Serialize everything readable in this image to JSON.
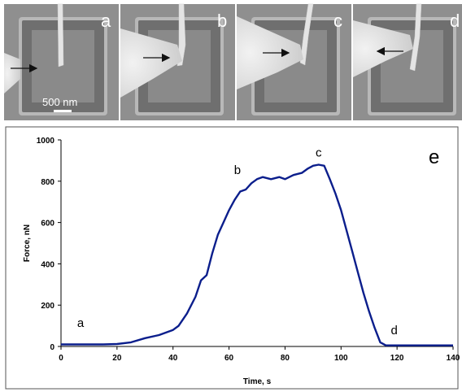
{
  "sem_panels": [
    {
      "label": "a",
      "arrow": "right"
    },
    {
      "label": "b",
      "arrow": "right"
    },
    {
      "label": "c",
      "arrow": "right"
    },
    {
      "label": "d",
      "arrow": "left"
    }
  ],
  "scale_bar_label": "500 nm",
  "chart_data": {
    "type": "line",
    "panel_label": "e",
    "xlabel": "Time, s",
    "ylabel": "Force, nN",
    "xlim": [
      0,
      140
    ],
    "ylim": [
      0,
      1000
    ],
    "xticks": [
      0,
      20,
      40,
      60,
      80,
      100,
      120,
      140
    ],
    "yticks": [
      0,
      200,
      400,
      600,
      800,
      1000
    ],
    "grid": false,
    "series": [
      {
        "color": "#0b1e8c",
        "x": [
          0,
          5,
          10,
          15,
          20,
          25,
          30,
          35,
          38,
          40,
          42,
          45,
          48,
          50,
          52,
          54,
          56,
          58,
          60,
          62,
          64,
          66,
          68,
          70,
          72,
          75,
          78,
          80,
          83,
          86,
          88,
          90,
          92,
          94,
          96,
          98,
          100,
          102,
          104,
          106,
          108,
          110,
          112,
          114,
          116,
          120,
          130,
          140
        ],
        "y": [
          10,
          10,
          10,
          10,
          12,
          20,
          40,
          55,
          70,
          80,
          100,
          160,
          240,
          320,
          345,
          450,
          540,
          600,
          660,
          710,
          750,
          760,
          790,
          810,
          820,
          810,
          820,
          810,
          830,
          840,
          860,
          875,
          880,
          875,
          810,
          740,
          660,
          560,
          460,
          360,
          260,
          170,
          90,
          20,
          5,
          5,
          5,
          5
        ]
      }
    ],
    "annotations": [
      {
        "text": "a",
        "x": 7,
        "y": 95
      },
      {
        "text": "b",
        "x": 63,
        "y": 835
      },
      {
        "text": "c",
        "x": 92,
        "y": 920
      },
      {
        "text": "d",
        "x": 119,
        "y": 60
      }
    ]
  },
  "colors": {
    "sem_background": "#8f8f8f",
    "curve": "#0b1e8c"
  }
}
